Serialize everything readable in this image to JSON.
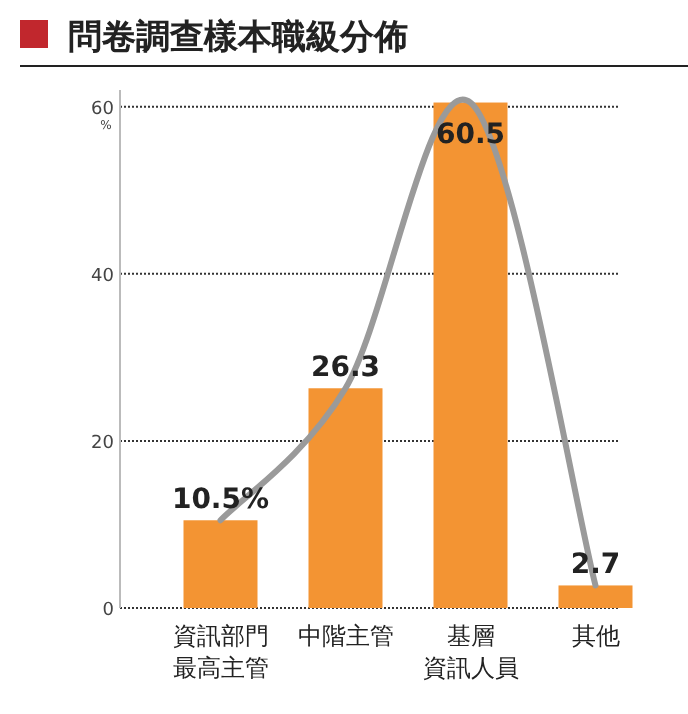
{
  "chart_data": {
    "type": "bar",
    "title": "問卷調查樣本職級分佈",
    "ylabel": "%",
    "categories": [
      "資訊部門最高主管",
      "中階主管",
      "基層資訊人員",
      "其他"
    ],
    "series": [
      {
        "color": "#f39433",
        "values": [
          10.5,
          26.3,
          60.5,
          2.7
        ],
        "value_labels": [
          "10.5%",
          "26.3",
          "60.5",
          "2.7"
        ]
      },
      {
        "type": "line",
        "color": "#9a9a9a",
        "values": [
          10.5,
          26.3,
          60.5,
          2.7
        ]
      }
    ],
    "ylim": [
      0,
      62
    ],
    "yticks": [
      0,
      20,
      40,
      60
    ],
    "grid": "y",
    "line_style": "solid",
    "marker": "none"
  }
}
